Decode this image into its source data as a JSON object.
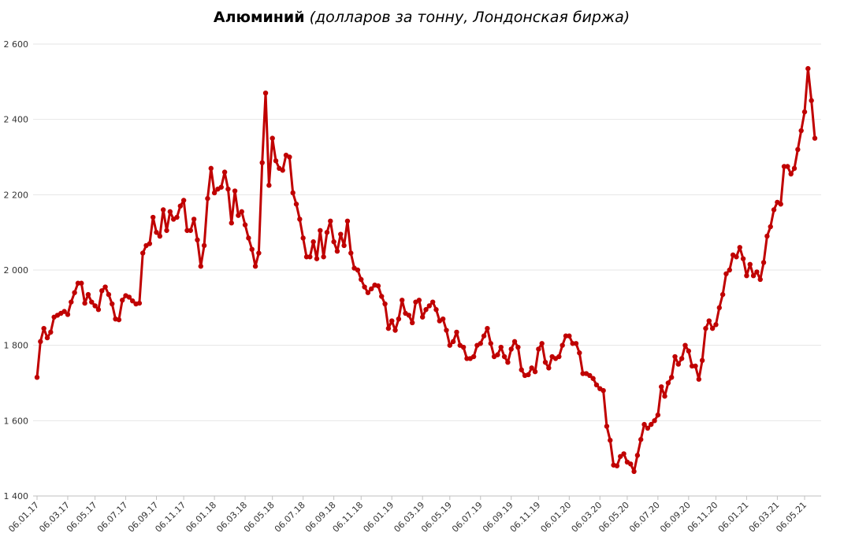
{
  "chart_data": {
    "type": "line",
    "title": "Алюминий",
    "subtitle": "(долларов за тонну, Лондонская биржа)",
    "categories": [
      "06.01.17",
      null,
      null,
      null,
      null,
      null,
      null,
      null,
      null,
      "06.03.17",
      null,
      null,
      null,
      null,
      null,
      null,
      null,
      "06.05.17",
      null,
      null,
      null,
      null,
      null,
      null,
      null,
      null,
      "06.07.17",
      null,
      null,
      null,
      null,
      null,
      null,
      null,
      null,
      "06.09.17",
      null,
      null,
      null,
      null,
      null,
      null,
      null,
      "06.11.17",
      null,
      null,
      null,
      null,
      null,
      null,
      null,
      null,
      "06.01.18",
      null,
      null,
      null,
      null,
      null,
      null,
      null,
      null,
      "06.03.18",
      null,
      null,
      null,
      null,
      null,
      null,
      null,
      "06.05.18",
      null,
      null,
      null,
      null,
      null,
      null,
      null,
      null,
      "06.07.18",
      null,
      null,
      null,
      null,
      null,
      null,
      null,
      null,
      "06.09.18",
      null,
      null,
      null,
      null,
      null,
      null,
      null,
      "06.11.18",
      null,
      null,
      null,
      null,
      null,
      null,
      null,
      null,
      "06.01.19",
      null,
      null,
      null,
      null,
      null,
      null,
      null,
      null,
      "06.03.19",
      null,
      null,
      null,
      null,
      null,
      null,
      null,
      "06.05.19",
      null,
      null,
      null,
      null,
      null,
      null,
      null,
      null,
      "06.07.19",
      null,
      null,
      null,
      null,
      null,
      null,
      null,
      null,
      "06.09.19",
      null,
      null,
      null,
      null,
      null,
      null,
      null,
      "06.11.19",
      null,
      null,
      null,
      null,
      null,
      null,
      null,
      null,
      "06.01.20",
      null,
      null,
      null,
      null,
      null,
      null,
      null,
      null,
      "06.03.20",
      null,
      null,
      null,
      null,
      null,
      null,
      null,
      "06.05.20",
      null,
      null,
      null,
      null,
      null,
      null,
      null,
      null,
      "06.07.20",
      null,
      null,
      null,
      null,
      null,
      null,
      null,
      null,
      "06.09.20",
      null,
      null,
      null,
      null,
      null,
      null,
      null,
      "06.11.20",
      null,
      null,
      null,
      null,
      null,
      null,
      null,
      null,
      "06.01.21",
      null,
      null,
      null,
      null,
      null,
      null,
      null,
      null,
      "06.03.21",
      null,
      null,
      null,
      null,
      null,
      null,
      null,
      "06.05.21",
      null,
      null,
      null
    ],
    "series": [
      {
        "color": "#c00000",
        "values": [
          1715,
          1810,
          1845,
          1820,
          1835,
          1875,
          1880,
          1885,
          1890,
          1882,
          1915,
          1940,
          1965,
          1965,
          1912,
          1935,
          1915,
          1905,
          1895,
          1945,
          1955,
          1935,
          1910,
          1870,
          1868,
          1920,
          1932,
          1928,
          1918,
          1910,
          1912,
          2045,
          2065,
          2070,
          2140,
          2100,
          2090,
          2160,
          2105,
          2155,
          2135,
          2140,
          2170,
          2185,
          2105,
          2105,
          2135,
          2080,
          2010,
          2065,
          2190,
          2270,
          2205,
          2215,
          2220,
          2260,
          2215,
          2125,
          2210,
          2145,
          2155,
          2120,
          2085,
          2055,
          2010,
          2045,
          2285,
          2470,
          2225,
          2350,
          2290,
          2270,
          2265,
          2305,
          2300,
          2205,
          2175,
          2135,
          2085,
          2035,
          2035,
          2075,
          2030,
          2105,
          2035,
          2100,
          2130,
          2075,
          2050,
          2095,
          2065,
          2130,
          2045,
          2005,
          2000,
          1975,
          1955,
          1940,
          1950,
          1960,
          1958,
          1930,
          1910,
          1845,
          1865,
          1840,
          1870,
          1920,
          1885,
          1880,
          1860,
          1915,
          1920,
          1875,
          1895,
          1905,
          1915,
          1895,
          1865,
          1870,
          1840,
          1800,
          1810,
          1835,
          1800,
          1795,
          1765,
          1765,
          1770,
          1800,
          1805,
          1825,
          1845,
          1805,
          1770,
          1775,
          1795,
          1770,
          1755,
          1790,
          1810,
          1795,
          1735,
          1720,
          1722,
          1740,
          1730,
          1790,
          1805,
          1755,
          1740,
          1770,
          1765,
          1770,
          1800,
          1825,
          1825,
          1805,
          1805,
          1780,
          1725,
          1725,
          1720,
          1712,
          1695,
          1685,
          1680,
          1585,
          1548,
          1482,
          1480,
          1505,
          1512,
          1490,
          1485,
          1465,
          1508,
          1550,
          1590,
          1580,
          1590,
          1600,
          1615,
          1690,
          1665,
          1700,
          1715,
          1770,
          1750,
          1765,
          1800,
          1785,
          1745,
          1745,
          1710,
          1760,
          1845,
          1865,
          1845,
          1855,
          1900,
          1935,
          1990,
          2000,
          2040,
          2035,
          2060,
          2030,
          1985,
          2015,
          1985,
          1995,
          1975,
          2020,
          2090,
          2115,
          2160,
          2180,
          2175,
          2275,
          2275,
          2255,
          2270,
          2320,
          2370,
          2420,
          2535,
          2450,
          2350
        ]
      }
    ],
    "ylim": [
      1400,
      2600
    ],
    "yticks": [
      {
        "value": 1400,
        "label": "1 400"
      },
      {
        "value": 1600,
        "label": "1 600"
      },
      {
        "value": 1800,
        "label": "1 800"
      },
      {
        "value": 2000,
        "label": "2 000"
      },
      {
        "value": 2200,
        "label": "2 200"
      },
      {
        "value": 2400,
        "label": "2 400"
      },
      {
        "value": 2600,
        "label": "2 600"
      }
    ],
    "grid": true
  }
}
